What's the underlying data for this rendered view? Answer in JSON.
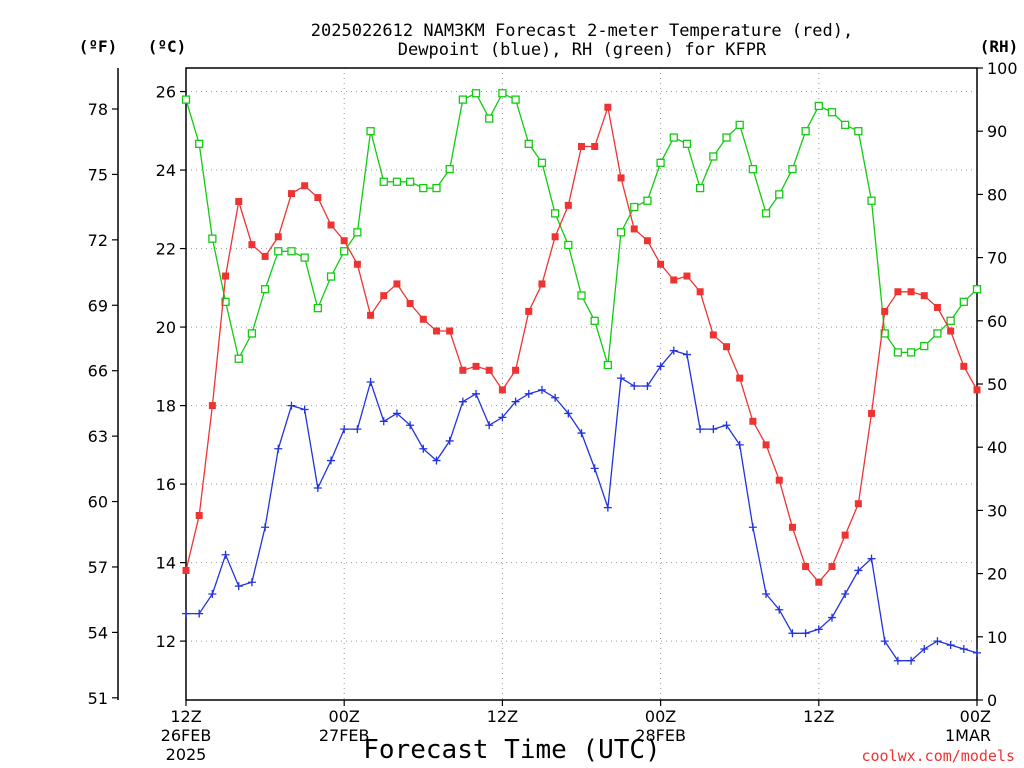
{
  "chart_data": {
    "type": "line",
    "title_line1": "2025022612 NAM3KM Forecast 2-meter Temperature (red),",
    "title_line2": "Dewpoint (blue), RH (green) for KFPR",
    "xlabel": "Forecast Time (UTC)",
    "credit": "coolwx.com/models",
    "unit_f": "(ºF)",
    "unit_c": "(ºC)",
    "unit_rh": "(RH)",
    "x_ticks": [
      {
        "h": 0,
        "l1": "12Z",
        "l2": "26FEB",
        "l3": "2025"
      },
      {
        "h": 12,
        "l1": "00Z",
        "l2": "27FEB",
        "l3": ""
      },
      {
        "h": 24,
        "l1": "12Z",
        "l2": "",
        "l3": ""
      },
      {
        "h": 36,
        "l1": "00Z",
        "l2": "28FEB",
        "l3": ""
      },
      {
        "h": 48,
        "l1": "12Z",
        "l2": "",
        "l3": ""
      },
      {
        "h": 60,
        "l1": "00Z",
        "l2": "1MAR",
        "l3": ""
      }
    ],
    "xlim_hours": [
      0,
      60
    ],
    "ylim_c": [
      10.5,
      26.6
    ],
    "ylim_rh": [
      0,
      100
    ],
    "yticks_c": [
      "12",
      "14",
      "16",
      "18",
      "20",
      "22",
      "24",
      "26"
    ],
    "yticks_f": [
      "51",
      "54",
      "57",
      "60",
      "63",
      "66",
      "69",
      "72",
      "75",
      "78"
    ],
    "yticks_rh": [
      "0",
      "10",
      "20",
      "30",
      "40",
      "50",
      "60",
      "70",
      "80",
      "90",
      "100"
    ],
    "grid": true,
    "colors": {
      "temperature": "#ee3333",
      "dewpoint": "#2233dd",
      "rh": "#11cc11"
    },
    "series": [
      {
        "name": "Temperature",
        "units": "C",
        "x": [
          0,
          1,
          2,
          3,
          4,
          5,
          6,
          7,
          8,
          9,
          10,
          11,
          12,
          13,
          14,
          15,
          16,
          17,
          18,
          19,
          20,
          21,
          22,
          23,
          24,
          25,
          26,
          27,
          28,
          29,
          30,
          31,
          32,
          33,
          34,
          35,
          36,
          37,
          38,
          39,
          40,
          41,
          42,
          43,
          44,
          45,
          46,
          47,
          48,
          49,
          50,
          51,
          52,
          53,
          54,
          55,
          56,
          57,
          58,
          59,
          60
        ],
        "values": [
          13.8,
          15.2,
          18.0,
          21.3,
          23.2,
          22.1,
          21.8,
          22.3,
          23.4,
          23.6,
          23.3,
          22.6,
          22.2,
          21.6,
          20.3,
          20.8,
          21.1,
          20.6,
          20.2,
          19.9,
          19.9,
          18.9,
          19.0,
          18.9,
          18.4,
          18.9,
          20.4,
          21.1,
          22.3,
          23.1,
          24.6,
          24.6,
          25.6,
          23.8,
          22.5,
          22.2,
          21.6,
          21.2,
          21.3,
          20.9,
          19.8,
          19.5,
          18.7,
          17.6,
          17.0,
          16.1,
          14.9,
          13.9,
          13.5,
          13.9,
          14.7,
          15.5,
          17.8,
          20.4,
          20.9,
          20.9,
          20.8,
          20.5,
          19.9,
          19.0,
          18.4
        ]
      },
      {
        "name": "Dewpoint",
        "units": "C",
        "x": [
          0,
          1,
          2,
          3,
          4,
          5,
          6,
          7,
          8,
          9,
          10,
          11,
          12,
          13,
          14,
          15,
          16,
          17,
          18,
          19,
          20,
          21,
          22,
          23,
          24,
          25,
          26,
          27,
          28,
          29,
          30,
          31,
          32,
          33,
          34,
          35,
          36,
          37,
          38,
          39,
          40,
          41,
          42,
          43,
          44,
          45,
          46,
          47,
          48,
          49,
          50,
          51,
          52,
          53,
          54,
          55,
          56,
          57,
          58,
          59,
          60
        ],
        "values": [
          12.7,
          12.7,
          13.2,
          14.2,
          13.4,
          13.5,
          14.9,
          16.9,
          18.0,
          17.9,
          15.9,
          16.6,
          17.4,
          17.4,
          18.6,
          17.6,
          17.8,
          17.5,
          16.9,
          16.6,
          17.1,
          18.1,
          18.3,
          17.5,
          17.7,
          18.1,
          18.3,
          18.4,
          18.2,
          17.8,
          17.3,
          16.4,
          15.4,
          18.7,
          18.5,
          18.5,
          19.0,
          19.4,
          19.3,
          17.4,
          17.4,
          17.5,
          17.0,
          14.9,
          13.2,
          12.8,
          12.2,
          12.2,
          12.3,
          12.6,
          13.2,
          13.8,
          14.1,
          12.0,
          11.5,
          11.5,
          11.8,
          12.0,
          11.9,
          11.8,
          11.7
        ]
      },
      {
        "name": "RH",
        "units": "%",
        "x": [
          0,
          1,
          2,
          3,
          4,
          5,
          6,
          7,
          8,
          9,
          10,
          11,
          12,
          13,
          14,
          15,
          16,
          17,
          18,
          19,
          20,
          21,
          22,
          23,
          24,
          25,
          26,
          27,
          28,
          29,
          30,
          31,
          32,
          33,
          34,
          35,
          36,
          37,
          38,
          39,
          40,
          41,
          42,
          43,
          44,
          45,
          46,
          47,
          48,
          49,
          50,
          51,
          52,
          53,
          54,
          55,
          56,
          57,
          58,
          59,
          60
        ],
        "values": [
          95,
          88,
          73,
          63,
          54,
          58,
          65,
          71,
          71,
          70,
          62,
          67,
          71,
          74,
          90,
          82,
          82,
          82,
          81,
          81,
          84,
          95,
          96,
          92,
          96,
          95,
          88,
          85,
          77,
          72,
          64,
          60,
          53,
          74,
          78,
          79,
          85,
          89,
          88,
          81,
          86,
          89,
          91,
          84,
          77,
          80,
          84,
          90,
          94,
          93,
          91,
          90,
          79,
          58,
          55,
          55,
          56,
          58,
          60,
          63,
          65
        ]
      }
    ]
  }
}
